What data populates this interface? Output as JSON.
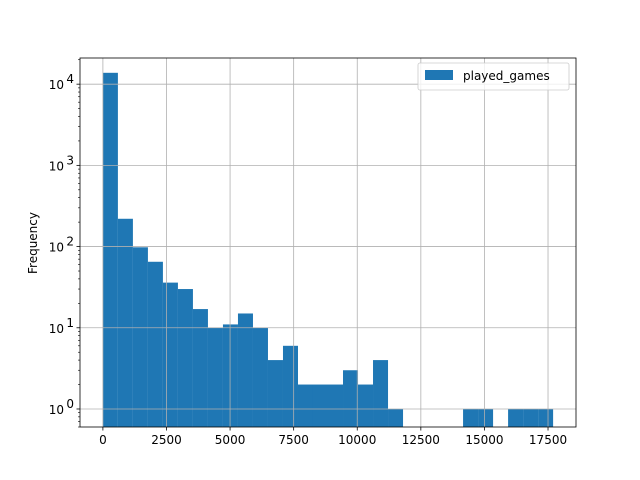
{
  "chart_data": {
    "type": "bar",
    "subtype": "histogram",
    "bin_width": 590,
    "bin_starts": [
      0,
      590,
      1180,
      1770,
      2360,
      2950,
      3540,
      4130,
      4720,
      5310,
      5900,
      6490,
      7080,
      7670,
      8260,
      8850,
      9440,
      10030,
      10620,
      11210,
      11800,
      12390,
      12980,
      13570,
      14160,
      14750,
      15340,
      15930,
      16520,
      17110
    ],
    "values": [
      13800,
      220,
      98,
      65,
      36,
      30,
      17,
      10,
      11,
      15,
      10,
      4,
      6,
      2,
      2,
      2,
      3,
      2,
      4,
      1,
      0,
      0,
      0,
      0,
      1,
      1,
      0,
      1,
      1,
      1
    ],
    "series": [
      {
        "name": "played_games",
        "color": "#1f77b4"
      }
    ],
    "xlabel": "",
    "ylabel": "Frequency",
    "xlim": [
      -900,
      18600
    ],
    "ylim": [
      0.6,
      21000
    ],
    "yscale": "log",
    "x_ticks": [
      0,
      2500,
      5000,
      7500,
      10000,
      12500,
      15000,
      17500
    ],
    "x_tick_labels": [
      "0",
      "2500",
      "5000",
      "7500",
      "10000",
      "12500",
      "15000",
      "17500"
    ],
    "y_ticks": [
      1,
      10,
      100,
      1000,
      10000
    ],
    "y_tick_labels": [
      {
        "base": "10",
        "exp": "0"
      },
      {
        "base": "10",
        "exp": "1"
      },
      {
        "base": "10",
        "exp": "2"
      },
      {
        "base": "10",
        "exp": "3"
      },
      {
        "base": "10",
        "exp": "4"
      }
    ],
    "grid": true,
    "legend_position": "top-right"
  }
}
